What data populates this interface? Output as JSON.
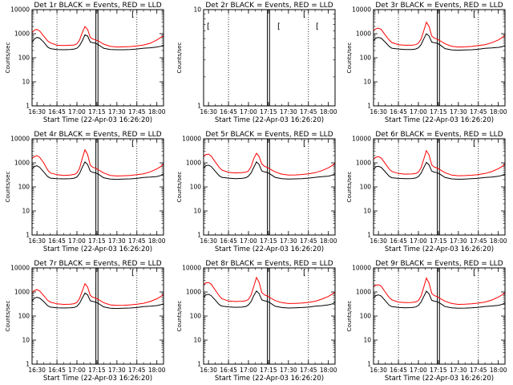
{
  "figure": {
    "xlabel": "Start Time (22-Apr-03 16:26:20)",
    "ylabel": "Counts/sec",
    "x_ticks": [
      "16:30",
      "16:45",
      "17:00",
      "17:15",
      "17:30",
      "17:45",
      "18:00"
    ],
    "x_tick_minutes": [
      30,
      45,
      60,
      75,
      90,
      105,
      120
    ],
    "x_range_minutes": [
      26.3,
      125
    ],
    "dotted_lines_minutes": [
      45,
      105
    ],
    "solid_lines_minutes": [
      74.2,
      75.8
    ],
    "colors": {
      "events": "#000000",
      "lld": "#ff0000"
    },
    "corner_mark": "[",
    "series_names": [
      "Events",
      "LLD"
    ]
  },
  "chart_data": [
    {
      "type": "line",
      "title": "Det 1r BLACK = Events, RED = LLD",
      "ylim": [
        1,
        10000
      ],
      "yscale": "log",
      "y_ticks": [
        "1",
        "10",
        "100",
        "1000",
        "10000"
      ],
      "x": [
        26.3,
        28,
        30,
        32,
        35,
        38,
        40,
        45,
        50,
        55,
        58,
        60,
        62,
        64,
        66,
        68,
        70,
        72,
        74,
        76,
        80,
        85,
        90,
        95,
        100,
        105,
        110,
        115,
        120,
        123,
        125
      ],
      "series": [
        {
          "name": "Events",
          "values": [
            450,
            600,
            700,
            650,
            450,
            280,
            240,
            220,
            215,
            220,
            230,
            250,
            320,
            500,
            900,
            800,
            450,
            420,
            400,
            350,
            250,
            220,
            215,
            215,
            220,
            230,
            250,
            260,
            280,
            300,
            330
          ]
        },
        {
          "name": "LLD",
          "values": [
            1100,
            1400,
            1500,
            1300,
            800,
            500,
            420,
            330,
            320,
            330,
            340,
            380,
            550,
            1100,
            2000,
            1500,
            700,
            600,
            550,
            500,
            370,
            300,
            280,
            285,
            290,
            310,
            340,
            400,
            550,
            700,
            800
          ]
        }
      ]
    },
    {
      "type": "line",
      "title": "Det 2r BLACK = Events, RED = LLD",
      "ylim": [
        1,
        10
      ],
      "yscale": "log",
      "y_ticks": [
        "1",
        "10"
      ],
      "x": [],
      "series": []
    },
    {
      "type": "line",
      "title": "Det 3r BLACK = Events, RED = LLD",
      "ylim": [
        1,
        10000
      ],
      "yscale": "log",
      "y_ticks": [
        "1",
        "10",
        "100",
        "1000",
        "10000"
      ],
      "x": [
        26.3,
        28,
        30,
        32,
        35,
        38,
        40,
        45,
        50,
        55,
        58,
        60,
        62,
        64,
        66,
        68,
        70,
        72,
        74,
        76,
        80,
        85,
        90,
        95,
        100,
        105,
        110,
        115,
        120,
        123,
        125
      ],
      "series": [
        {
          "name": "Events",
          "values": [
            500,
            650,
            700,
            650,
            450,
            300,
            250,
            230,
            220,
            220,
            230,
            260,
            350,
            600,
            1000,
            800,
            450,
            420,
            400,
            350,
            240,
            210,
            205,
            210,
            215,
            225,
            245,
            255,
            270,
            290,
            320
          ]
        },
        {
          "name": "LLD",
          "values": [
            1300,
            1600,
            1700,
            1500,
            900,
            550,
            430,
            350,
            330,
            330,
            350,
            400,
            600,
            1300,
            3000,
            2000,
            800,
            650,
            600,
            520,
            380,
            300,
            280,
            285,
            295,
            320,
            350,
            420,
            550,
            700,
            850
          ]
        }
      ]
    },
    {
      "type": "line",
      "title": "Det 4r BLACK = Events, RED = LLD",
      "ylim": [
        1,
        10000
      ],
      "yscale": "log",
      "y_ticks": [
        "1",
        "10",
        "100",
        "1000",
        "10000"
      ],
      "x": [
        26.3,
        28,
        30,
        32,
        35,
        38,
        40,
        45,
        50,
        55,
        58,
        60,
        62,
        64,
        66,
        68,
        70,
        72,
        74,
        76,
        80,
        85,
        90,
        95,
        100,
        105,
        110,
        115,
        120,
        123,
        125
      ],
      "series": [
        {
          "name": "Events",
          "values": [
            550,
            700,
            750,
            650,
            420,
            270,
            230,
            220,
            215,
            220,
            230,
            260,
            360,
            650,
            1100,
            850,
            450,
            400,
            380,
            340,
            240,
            210,
            205,
            210,
            215,
            225,
            245,
            255,
            270,
            300,
            350
          ]
        },
        {
          "name": "LLD",
          "values": [
            1500,
            1800,
            2000,
            1700,
            1000,
            500,
            380,
            320,
            300,
            310,
            330,
            380,
            600,
            1500,
            3500,
            2200,
            800,
            650,
            600,
            520,
            380,
            300,
            285,
            290,
            300,
            320,
            350,
            420,
            560,
            700,
            900
          ]
        }
      ]
    },
    {
      "type": "line",
      "title": "Det 5r BLACK = Events, RED = LLD",
      "ylim": [
        1,
        10000
      ],
      "yscale": "log",
      "y_ticks": [
        "1",
        "10",
        "100",
        "1000",
        "10000"
      ],
      "x": [
        26.3,
        28,
        30,
        32,
        35,
        38,
        40,
        45,
        50,
        55,
        58,
        60,
        62,
        64,
        66,
        68,
        70,
        72,
        74,
        76,
        80,
        85,
        90,
        95,
        100,
        105,
        110,
        115,
        120,
        123,
        125
      ],
      "series": [
        {
          "name": "Events",
          "values": [
            600,
            750,
            800,
            700,
            450,
            290,
            250,
            230,
            220,
            225,
            240,
            280,
            380,
            650,
            1100,
            850,
            460,
            420,
            400,
            350,
            250,
            220,
            210,
            215,
            220,
            230,
            250,
            265,
            280,
            310,
            360
          ]
        },
        {
          "name": "LLD",
          "values": [
            1800,
            2200,
            2300,
            1900,
            1100,
            650,
            500,
            400,
            380,
            390,
            410,
            460,
            700,
            1500,
            2500,
            1800,
            900,
            720,
            650,
            560,
            420,
            340,
            310,
            315,
            325,
            350,
            390,
            470,
            620,
            780,
            950
          ]
        }
      ]
    },
    {
      "type": "line",
      "title": "Det 6r BLACK = Events, RED = LLD",
      "ylim": [
        1,
        10000
      ],
      "yscale": "log",
      "y_ticks": [
        "1",
        "10",
        "100",
        "1000",
        "10000"
      ],
      "x": [
        26.3,
        28,
        30,
        32,
        35,
        38,
        40,
        45,
        50,
        55,
        58,
        60,
        62,
        64,
        66,
        68,
        70,
        72,
        74,
        76,
        80,
        85,
        90,
        95,
        100,
        105,
        110,
        115,
        120,
        123,
        125
      ],
      "series": [
        {
          "name": "Events",
          "values": [
            520,
            680,
            720,
            650,
            430,
            280,
            240,
            225,
            218,
            222,
            235,
            270,
            370,
            620,
            1050,
            820,
            450,
            410,
            390,
            345,
            245,
            215,
            208,
            212,
            218,
            228,
            248,
            258,
            275,
            305,
            340
          ]
        },
        {
          "name": "LLD",
          "values": [
            1400,
            1700,
            1800,
            1600,
            950,
            560,
            440,
            360,
            340,
            345,
            360,
            410,
            620,
            1400,
            3200,
            2100,
            820,
            660,
            610,
            530,
            390,
            310,
            290,
            295,
            305,
            325,
            360,
            430,
            570,
            720,
            880
          ]
        }
      ]
    },
    {
      "type": "line",
      "title": "Det 7r BLACK = Events, RED = LLD",
      "ylim": [
        1,
        10000
      ],
      "yscale": "log",
      "y_ticks": [
        "1",
        "10",
        "100",
        "1000",
        "10000"
      ],
      "x": [
        26.3,
        28,
        30,
        32,
        35,
        38,
        40,
        45,
        50,
        55,
        58,
        60,
        62,
        64,
        66,
        68,
        70,
        72,
        74,
        76,
        80,
        85,
        90,
        95,
        100,
        105,
        110,
        115,
        120,
        123,
        125
      ],
      "series": [
        {
          "name": "Events",
          "values": [
            420,
            550,
            600,
            560,
            400,
            270,
            235,
            220,
            215,
            218,
            228,
            255,
            340,
            560,
            900,
            760,
            430,
            400,
            380,
            335,
            240,
            212,
            206,
            210,
            216,
            226,
            246,
            256,
            272,
            295,
            320
          ]
        },
        {
          "name": "LLD",
          "values": [
            950,
            1150,
            1250,
            1100,
            700,
            450,
            380,
            320,
            305,
            310,
            325,
            370,
            540,
            1100,
            2200,
            1600,
            720,
            600,
            560,
            490,
            360,
            290,
            275,
            280,
            290,
            310,
            340,
            400,
            520,
            650,
            780
          ]
        }
      ]
    },
    {
      "type": "line",
      "title": "Det 8r BLACK = Events, RED = LLD",
      "ylim": [
        1,
        10000
      ],
      "yscale": "log",
      "y_ticks": [
        "1",
        "10",
        "100",
        "1000",
        "10000"
      ],
      "x": [
        26.3,
        28,
        30,
        32,
        35,
        38,
        40,
        45,
        50,
        55,
        58,
        60,
        62,
        64,
        66,
        68,
        70,
        72,
        74,
        76,
        80,
        85,
        90,
        95,
        100,
        105,
        110,
        115,
        120,
        123,
        125
      ],
      "series": [
        {
          "name": "Events",
          "values": [
            600,
            750,
            800,
            700,
            460,
            300,
            260,
            240,
            230,
            235,
            250,
            290,
            400,
            700,
            1100,
            850,
            470,
            430,
            410,
            360,
            255,
            225,
            215,
            220,
            225,
            235,
            255,
            270,
            290,
            320,
            370
          ]
        },
        {
          "name": "LLD",
          "values": [
            2000,
            2400,
            2500,
            2100,
            1200,
            700,
            520,
            420,
            400,
            410,
            430,
            490,
            750,
            1700,
            4000,
            2500,
            950,
            760,
            680,
            590,
            440,
            360,
            330,
            335,
            345,
            370,
            410,
            500,
            650,
            820,
            1000
          ]
        }
      ]
    },
    {
      "type": "line",
      "title": "Det 9r BLACK = Events, RED = LLD",
      "ylim": [
        1,
        10000
      ],
      "yscale": "log",
      "y_ticks": [
        "1",
        "10",
        "100",
        "1000",
        "10000"
      ],
      "x": [
        26.3,
        28,
        30,
        32,
        35,
        38,
        40,
        45,
        50,
        55,
        58,
        60,
        62,
        64,
        66,
        68,
        70,
        72,
        74,
        76,
        80,
        85,
        90,
        95,
        100,
        105,
        110,
        115,
        120,
        123,
        125
      ],
      "series": [
        {
          "name": "Events",
          "values": [
            550,
            700,
            760,
            680,
            440,
            285,
            245,
            228,
            220,
            224,
            238,
            275,
            380,
            640,
            1080,
            830,
            455,
            415,
            395,
            348,
            248,
            218,
            210,
            214,
            220,
            230,
            250,
            262,
            278,
            308,
            350
          ]
        },
        {
          "name": "LLD",
          "values": [
            1600,
            1900,
            2000,
            1750,
            1000,
            600,
            470,
            380,
            360,
            365,
            385,
            440,
            680,
            1550,
            3800,
            2300,
            880,
            700,
            640,
            550,
            410,
            330,
            305,
            310,
            320,
            345,
            380,
            460,
            610,
            770,
            940
          ]
        }
      ]
    }
  ]
}
